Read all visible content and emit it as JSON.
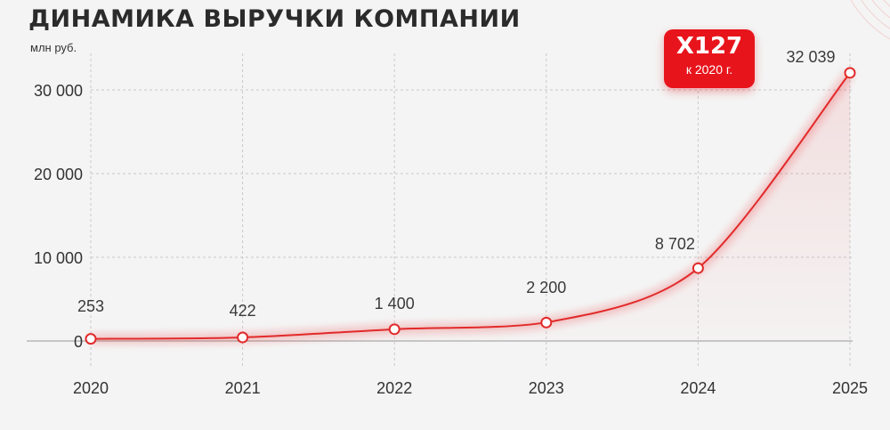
{
  "title": "ДИНАМИКА ВЫРУЧКИ КОМПАНИИ",
  "unit_label": "млн руб.",
  "badge": {
    "main": "X127",
    "sub": "к 2020 г."
  },
  "colors": {
    "accent": "#e8141c",
    "line": "#e22a2a",
    "background": "#f4f4f4",
    "grid": "#c9c9c9",
    "text": "#333333"
  },
  "chart_data": {
    "type": "line",
    "title": "ДИНАМИКА ВЫРУЧКИ КОМПАНИИ",
    "ylabel": "млн руб.",
    "xlabel": "",
    "categories": [
      "2020",
      "2021",
      "2022",
      "2023",
      "2024",
      "2025"
    ],
    "values": [
      253,
      422,
      1400,
      2200,
      8702,
      32039
    ],
    "point_labels": [
      "253",
      "422",
      "1 400",
      "2 200",
      "8 702",
      "32 039"
    ],
    "ylim": [
      0,
      33000
    ],
    "yticks": [
      0,
      10000,
      20000,
      30000
    ],
    "ytick_labels": [
      "0",
      "10 000",
      "20 000",
      "30 000"
    ],
    "grid": "dashed",
    "legend": "none"
  }
}
